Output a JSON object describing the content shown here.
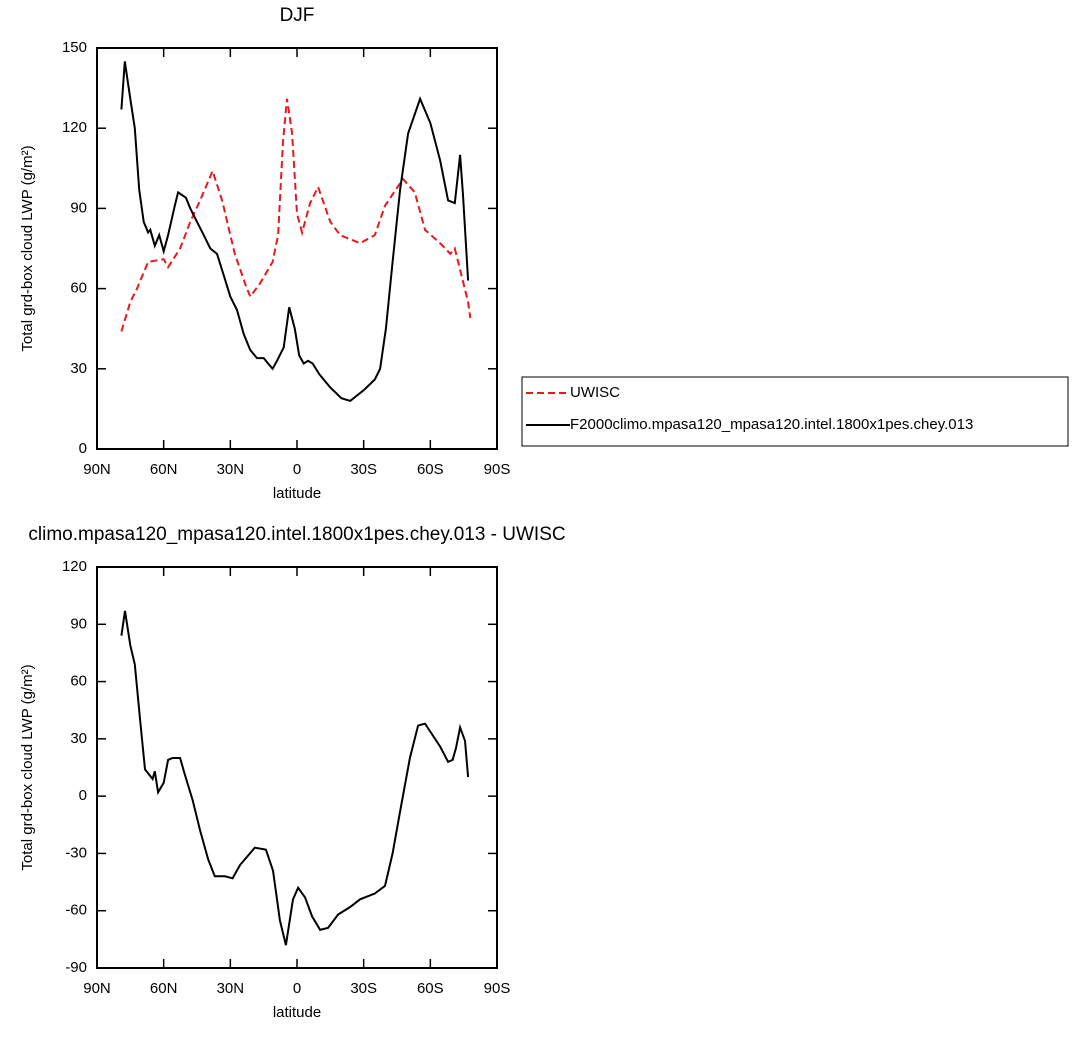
{
  "chart_data": [
    {
      "type": "line",
      "title": "DJF",
      "xlabel": "latitude",
      "ylabel": "Total grd-box cloud LWP (g/m²)",
      "xlim": [
        90,
        -90
      ],
      "ylim": [
        0,
        150
      ],
      "xticks": [
        {
          "value": 90,
          "label": "90N"
        },
        {
          "value": 60,
          "label": "60N"
        },
        {
          "value": 30,
          "label": "30N"
        },
        0,
        {
          "value": -30,
          "label": "30S"
        },
        {
          "value": -60,
          "label": "60S"
        },
        {
          "value": -90,
          "label": "90S"
        }
      ],
      "yticks": [
        0,
        30,
        60,
        90,
        120,
        150
      ],
      "series": [
        {
          "name": "UWISC",
          "color": "#e8191b",
          "dash": true,
          "x": [
            79,
            75,
            72,
            67,
            60,
            58,
            52.6,
            48,
            43.6,
            38,
            33.7,
            28,
            23,
            21,
            16.6,
            11,
            8.5,
            6.3,
            4.5,
            2.2,
            0,
            -2.3,
            -5.9,
            -9.5,
            -15,
            -19.4,
            -28.4,
            -35,
            -39.6,
            -47.7,
            -53,
            -57.6,
            -64.4,
            -69,
            -71,
            -77,
            -78
          ],
          "values": [
            44,
            55,
            60,
            70,
            71,
            68,
            75,
            85,
            93,
            104,
            93,
            73,
            61,
            57,
            62,
            70,
            80,
            115,
            131,
            118,
            88,
            81,
            92,
            98,
            85,
            80,
            77,
            80,
            91,
            101,
            96,
            82,
            77,
            73,
            75,
            55,
            49
          ]
        },
        {
          "name": "F2000climo.mpasa120_mpasa120.intel.1800x1pes.chey.013",
          "color": "#000000",
          "dash": false,
          "x": [
            79,
            77.5,
            75,
            73,
            71,
            69,
            67,
            66,
            64,
            62,
            60,
            58,
            55,
            53.5,
            50,
            48,
            45,
            42,
            39,
            36,
            33,
            30,
            27,
            24,
            21,
            18,
            15,
            13,
            11,
            9,
            6,
            3.5,
            1,
            -1,
            -3,
            -5,
            -7,
            -10,
            -15,
            -20,
            -24,
            -27,
            -30,
            -35,
            -37.4,
            -40,
            -43,
            -46.4,
            -50,
            -55.4,
            -60,
            -64.4,
            -68,
            -71,
            -73.4,
            -74.7,
            -77
          ],
          "values": [
            127,
            145,
            131,
            120,
            97,
            85,
            81,
            82,
            76,
            80,
            74,
            80,
            91,
            96,
            94,
            90,
            85,
            80,
            75,
            73,
            65,
            57,
            52,
            43,
            37,
            34,
            34,
            32,
            30,
            33,
            38,
            53,
            45,
            35,
            32,
            33,
            32,
            28,
            23,
            19,
            18,
            20,
            22,
            26,
            30,
            45,
            70,
            97,
            118,
            131,
            122,
            108,
            93,
            92,
            110,
            95,
            63
          ]
        }
      ]
    },
    {
      "type": "line",
      "title": "climo.mpasa120_mpasa120.intel.1800x1pes.chey.013 - UWISC",
      "xlabel": "latitude",
      "ylabel": "Total grd-box cloud LWP (g/m²)",
      "xlim": [
        90,
        -90
      ],
      "ylim": [
        -90,
        120
      ],
      "xticks": [
        {
          "value": 90,
          "label": "90N"
        },
        {
          "value": 60,
          "label": "60N"
        },
        {
          "value": 30,
          "label": "30N"
        },
        0,
        {
          "value": -30,
          "label": "30S"
        },
        {
          "value": -60,
          "label": "60S"
        },
        {
          "value": -90,
          "label": "90S"
        }
      ],
      "yticks": [
        -90,
        -60,
        -30,
        0,
        30,
        60,
        90,
        120
      ],
      "series": [
        {
          "color": "#000000",
          "dash": false,
          "x": [
            79,
            77.4,
            75,
            73,
            70.6,
            68.4,
            65,
            64,
            62.5,
            60,
            58,
            56,
            52.6,
            50.4,
            47,
            43.6,
            40,
            37,
            32.4,
            29,
            25.6,
            19,
            14,
            10.8,
            7.7,
            5,
            1.8,
            -0.5,
            -3.6,
            -6.8,
            -10.4,
            -14,
            -18.5,
            -24,
            -28.4,
            -35,
            -39.6,
            -43,
            -46.4,
            -50.8,
            -54.5,
            -57.6,
            -64.4,
            -68,
            -70,
            -71.5,
            -73.4,
            -75.6,
            -77
          ],
          "values": [
            84,
            97,
            79,
            69,
            40,
            14,
            9,
            13,
            2,
            7,
            19,
            20,
            20,
            11,
            -2,
            -18,
            -33,
            -42,
            -42,
            -43,
            -36,
            -27,
            -28,
            -39,
            -65,
            -78,
            -54,
            -48,
            -53,
            -63,
            -70,
            -69,
            -62,
            -58,
            -54,
            -51,
            -47,
            -30,
            -8,
            20,
            37,
            38,
            26,
            18,
            19,
            25,
            36,
            29,
            10
          ]
        }
      ]
    }
  ]
}
